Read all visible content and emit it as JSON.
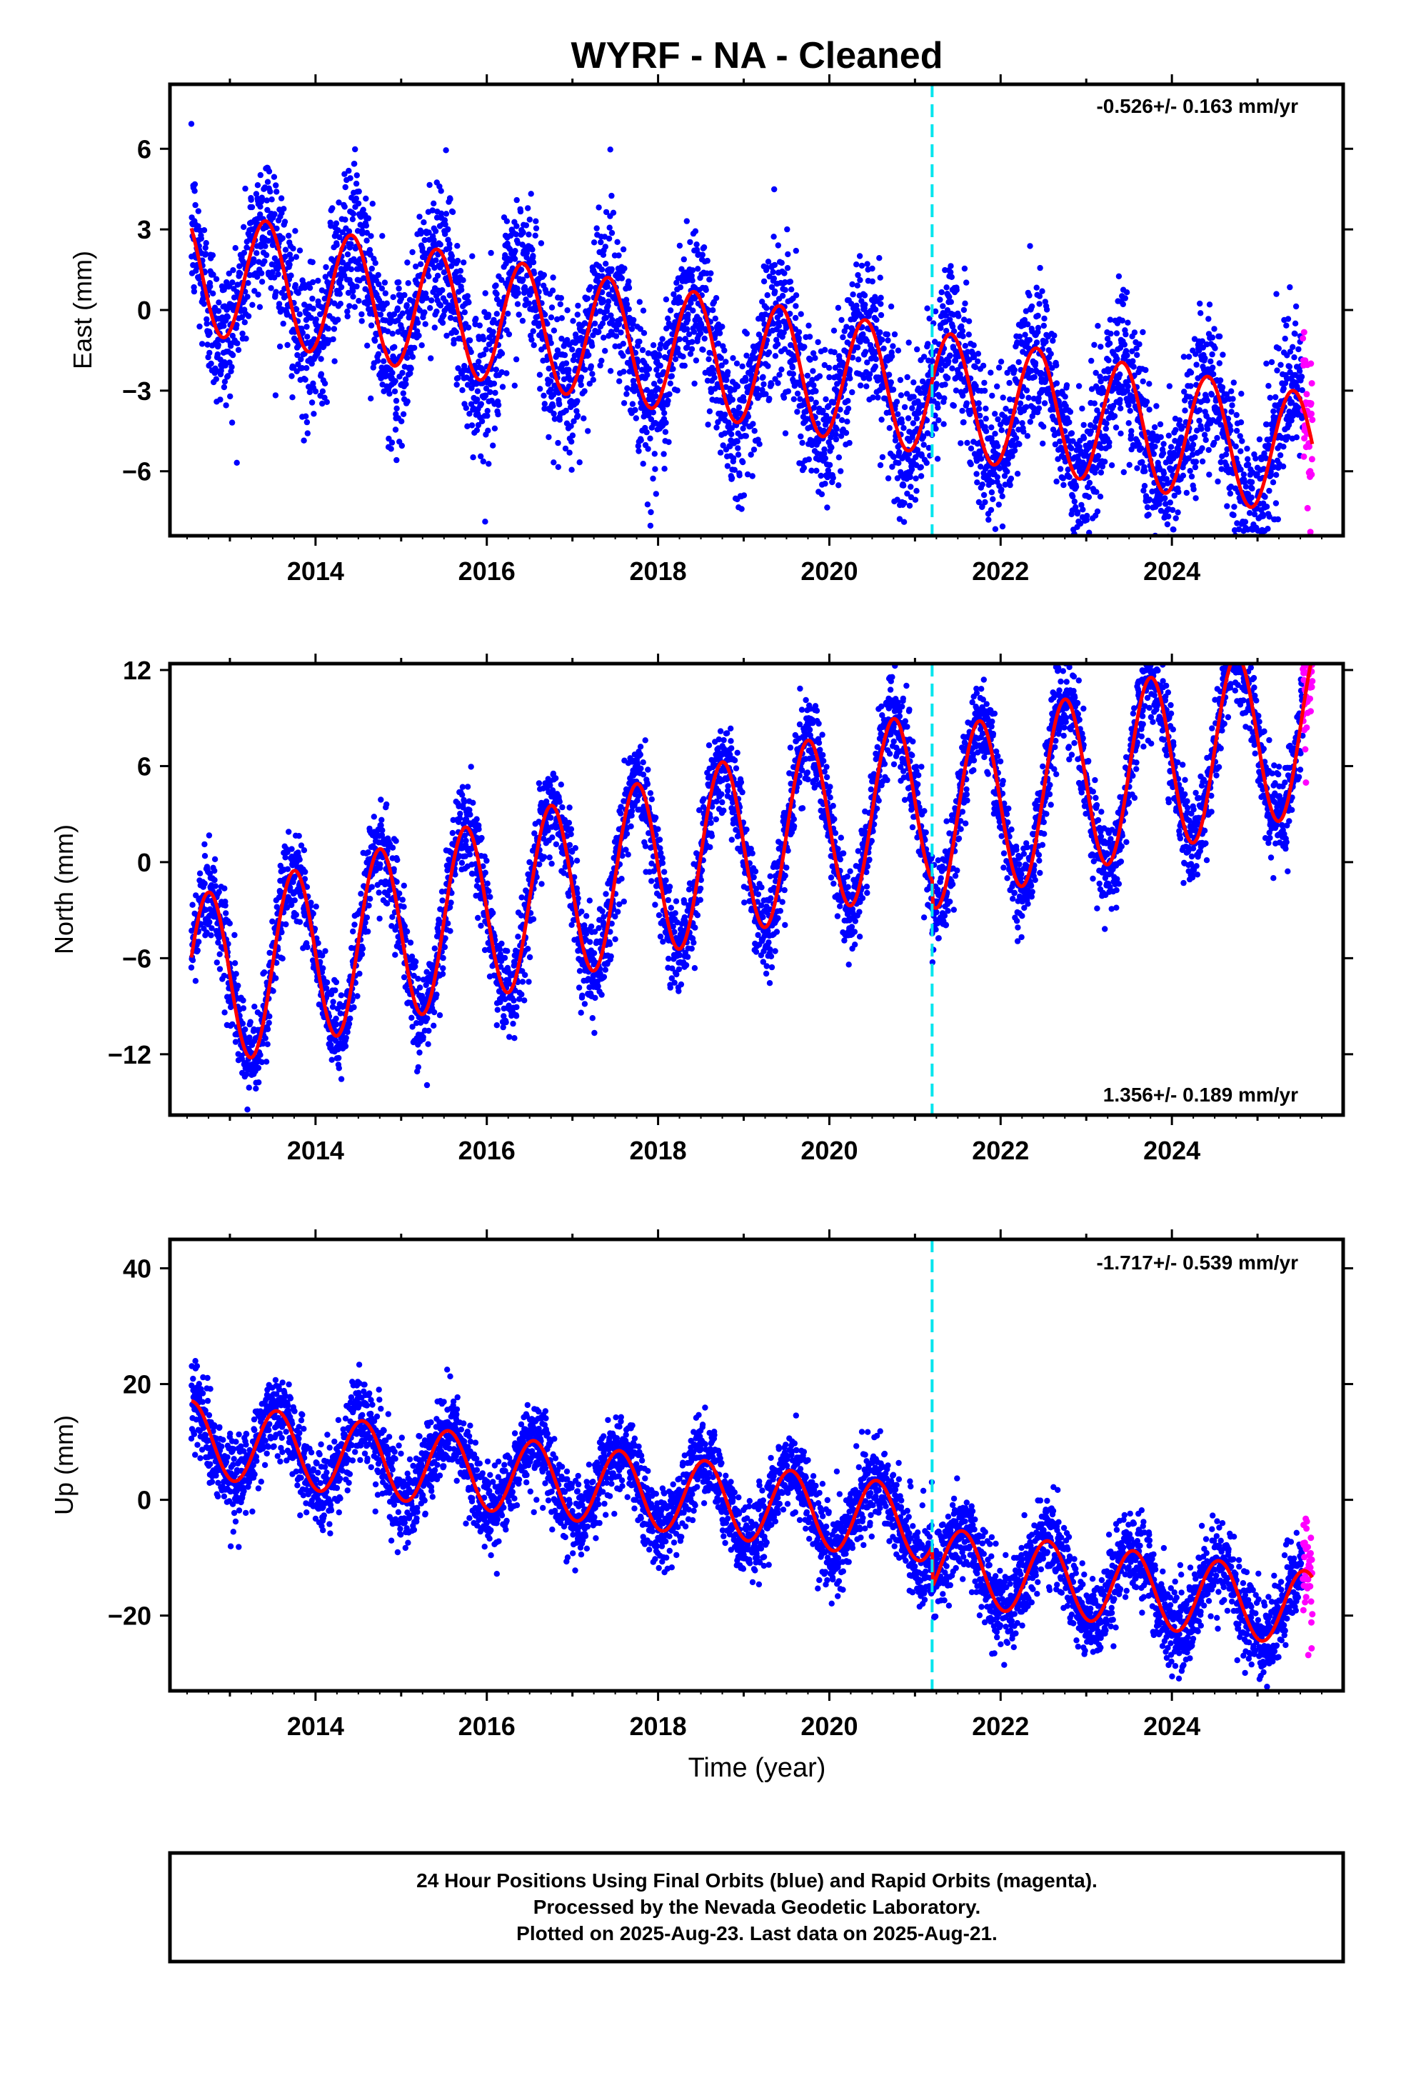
{
  "title": "WYRF  - NA - Cleaned",
  "colors": {
    "final_orbits": "#0000ff",
    "rapid_orbits": "#ff00ff",
    "model": "#ff0000",
    "equipment_change": "#00e5ee",
    "frame": "#000000"
  },
  "xaxis": {
    "label": "Time (year)",
    "ticks": [
      "2014",
      "2016",
      "2018",
      "2020",
      "2022",
      "2024"
    ],
    "range": [
      2012.3,
      2026.0
    ]
  },
  "equipment_change_year": 2021.2,
  "chart_data": [
    {
      "type": "scatter",
      "component": "east",
      "ylabel": "East (mm)",
      "ylim": [
        -8.4,
        8.4
      ],
      "yticks": [
        "6",
        "3",
        "0",
        "-3",
        "-6"
      ],
      "rate": "-0.526+/- 0.163 mm/yr",
      "rate_position": "top-right",
      "model": {
        "mean_start": 1.6,
        "trend_mm_yr": -0.526,
        "annual_amplitude": 2.3,
        "phase_year": 0.17,
        "offset_at_break": 0.0
      },
      "scatter_std": 1.4,
      "final_range": [
        2012.55,
        2025.53
      ],
      "rapid_range": [
        2025.53,
        2025.64
      ],
      "grid": false
    },
    {
      "type": "scatter",
      "component": "north",
      "ylabel": "North (mm)",
      "ylim": [
        -15.8,
        12.4
      ],
      "yticks": [
        "12",
        "6",
        "0",
        "-6",
        "-12"
      ],
      "rate": "1.356+/- 0.189 mm/yr",
      "rate_position": "bottom-right",
      "model": {
        "mean_start": -8.0,
        "trend_mm_yr": 1.356,
        "annual_amplitude": 5.5,
        "phase_year": 0.5,
        "offset_at_break": -1.5
      },
      "scatter_std": 1.4,
      "final_range": [
        2012.55,
        2025.53
      ],
      "rapid_range": [
        2025.53,
        2025.64
      ],
      "grid": false
    },
    {
      "type": "scatter",
      "component": "up",
      "ylabel": "Up (mm)",
      "ylim": [
        -33,
        45
      ],
      "yticks": [
        "40",
        "20",
        "0",
        "-20"
      ],
      "rate": "-1.717+/- 0.539 mm/yr",
      "rate_position": "top-right",
      "model": {
        "mean_start": 11.0,
        "trend_mm_yr": -1.717,
        "annual_amplitude": 6.5,
        "phase_year": 0.3,
        "offset_at_break": -7.0
      },
      "scatter_std": 3.6,
      "final_range": [
        2012.55,
        2025.53
      ],
      "rapid_range": [
        2025.53,
        2025.64
      ],
      "grid": false
    }
  ],
  "footer": {
    "line1": "24 Hour Positions Using Final Orbits (blue) and Rapid Orbits (magenta).",
    "line2": "Processed by the Nevada Geodetic Laboratory.",
    "line3": "Plotted on 2025-Aug-23. Last data on 2025-Aug-21."
  }
}
